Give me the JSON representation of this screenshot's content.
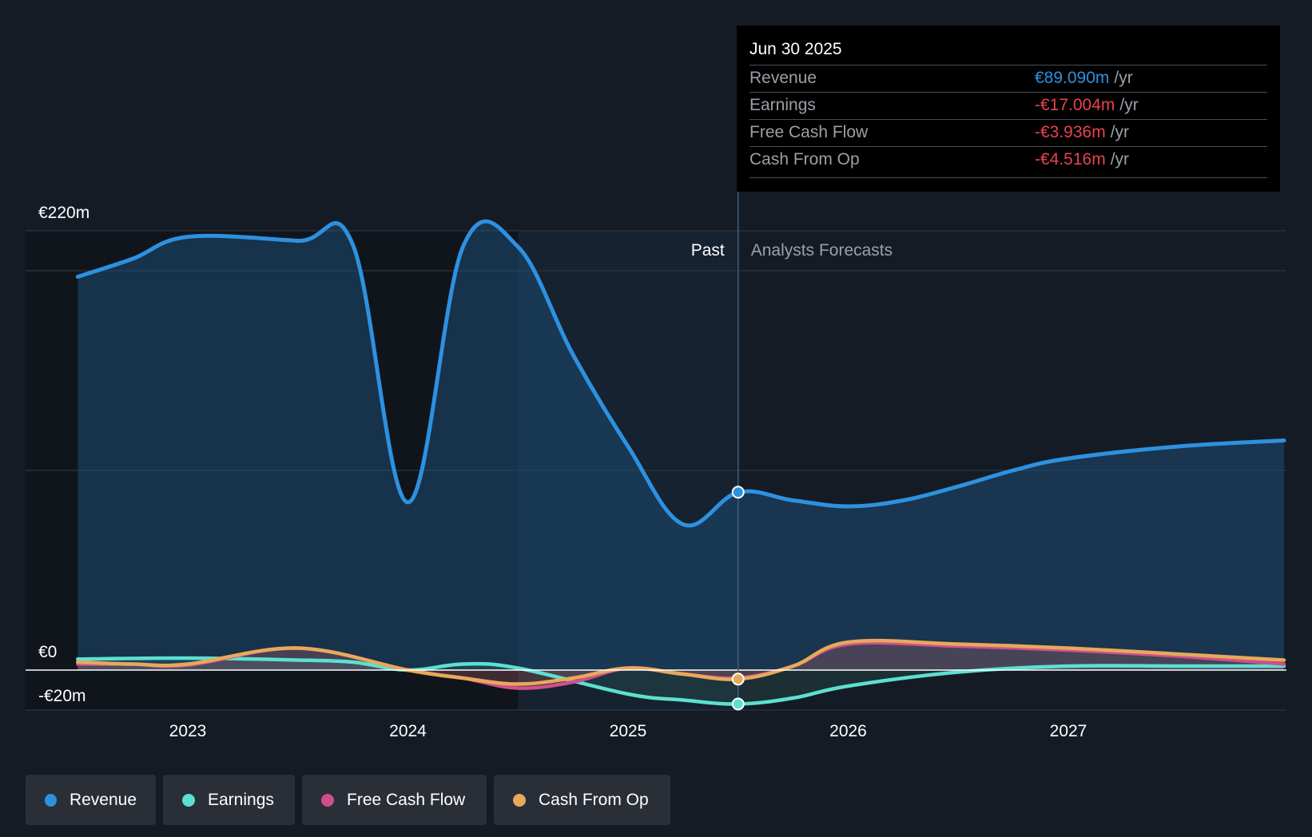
{
  "chart_data": {
    "type": "area",
    "currency": "€",
    "y_axis_labels": [
      "€220m",
      "€0",
      "-€20m"
    ],
    "ylim": [
      -20,
      220
    ],
    "x_ticks": [
      "2023",
      "2024",
      "2025",
      "2026",
      "2027"
    ],
    "x_tick_values": [
      2023,
      2024,
      2025,
      2026,
      2027
    ],
    "xlim": [
      2022.25,
      2027.98
    ],
    "past_label": "Past",
    "forecast_label": "Analysts Forecasts",
    "divider_x": 2025.5,
    "past_shade_start": 2024.5,
    "series": [
      {
        "name": "Revenue",
        "color": "#2d91e0",
        "points": [
          [
            2022.5,
            197
          ],
          [
            2022.75,
            206
          ],
          [
            2023.0,
            217
          ],
          [
            2023.5,
            215
          ],
          [
            2023.75,
            213
          ],
          [
            2024.0,
            84
          ],
          [
            2024.25,
            212
          ],
          [
            2024.5,
            212
          ],
          [
            2024.75,
            158
          ],
          [
            2025.0,
            112
          ],
          [
            2025.25,
            73
          ],
          [
            2025.5,
            89
          ],
          [
            2025.75,
            85
          ],
          [
            2026.0,
            82
          ],
          [
            2026.25,
            85
          ],
          [
            2026.5,
            92
          ],
          [
            2026.75,
            100
          ],
          [
            2027.0,
            106
          ],
          [
            2027.5,
            112
          ],
          [
            2027.98,
            115
          ]
        ]
      },
      {
        "name": "Earnings",
        "color": "#5de0d0",
        "points": [
          [
            2022.5,
            5.5
          ],
          [
            2023.0,
            6
          ],
          [
            2023.5,
            5
          ],
          [
            2023.75,
            4
          ],
          [
            2024.0,
            0
          ],
          [
            2024.25,
            3
          ],
          [
            2024.5,
            1
          ],
          [
            2025.0,
            -12
          ],
          [
            2025.25,
            -15
          ],
          [
            2025.5,
            -17
          ],
          [
            2025.75,
            -14
          ],
          [
            2026.0,
            -8
          ],
          [
            2026.5,
            -1
          ],
          [
            2027.0,
            2
          ],
          [
            2027.5,
            2
          ],
          [
            2027.98,
            2
          ]
        ]
      },
      {
        "name": "Free Cash Flow",
        "color": "#cf4f8c",
        "points": [
          [
            2022.5,
            3
          ],
          [
            2022.75,
            3
          ],
          [
            2023.0,
            2.5
          ],
          [
            2023.5,
            11
          ],
          [
            2024.0,
            0
          ],
          [
            2024.25,
            -4
          ],
          [
            2024.5,
            -9
          ],
          [
            2024.75,
            -6
          ],
          [
            2025.0,
            1
          ],
          [
            2025.25,
            -2
          ],
          [
            2025.5,
            -3.9
          ],
          [
            2025.75,
            2
          ],
          [
            2026.0,
            13
          ],
          [
            2026.5,
            12
          ],
          [
            2027.0,
            10
          ],
          [
            2027.5,
            7
          ],
          [
            2027.98,
            3
          ]
        ]
      },
      {
        "name": "Cash From Op",
        "color": "#e7a95b",
        "points": [
          [
            2022.5,
            4
          ],
          [
            2022.75,
            3
          ],
          [
            2023.0,
            3
          ],
          [
            2023.5,
            11
          ],
          [
            2024.0,
            0
          ],
          [
            2024.25,
            -4
          ],
          [
            2024.5,
            -7
          ],
          [
            2024.75,
            -4
          ],
          [
            2025.0,
            1
          ],
          [
            2025.25,
            -2
          ],
          [
            2025.5,
            -4.5
          ],
          [
            2025.75,
            2
          ],
          [
            2026.0,
            14
          ],
          [
            2026.5,
            13
          ],
          [
            2027.0,
            11
          ],
          [
            2027.5,
            8
          ],
          [
            2027.98,
            5
          ]
        ]
      }
    ],
    "highlight": {
      "x": 2025.5,
      "date": "Jun 30 2025",
      "rows": [
        {
          "label": "Revenue",
          "value": "€89.090m",
          "unit": "/yr",
          "color": "#2d91e0",
          "y": 89.09
        },
        {
          "label": "Earnings",
          "value": "-€17.004m",
          "unit": "/yr",
          "color": "#e8434c",
          "y": -17.004
        },
        {
          "label": "Free Cash Flow",
          "value": "-€3.936m",
          "unit": "/yr",
          "color": "#e8434c",
          "y": -3.936
        },
        {
          "label": "Cash From Op",
          "value": "-€4.516m",
          "unit": "/yr",
          "color": "#e8434c",
          "y": -4.516
        }
      ]
    }
  },
  "legend": [
    {
      "label": "Revenue",
      "color": "#2d91e0"
    },
    {
      "label": "Earnings",
      "color": "#5de0d0"
    },
    {
      "label": "Free Cash Flow",
      "color": "#cf4f8c"
    },
    {
      "label": "Cash From Op",
      "color": "#e7a95b"
    }
  ]
}
